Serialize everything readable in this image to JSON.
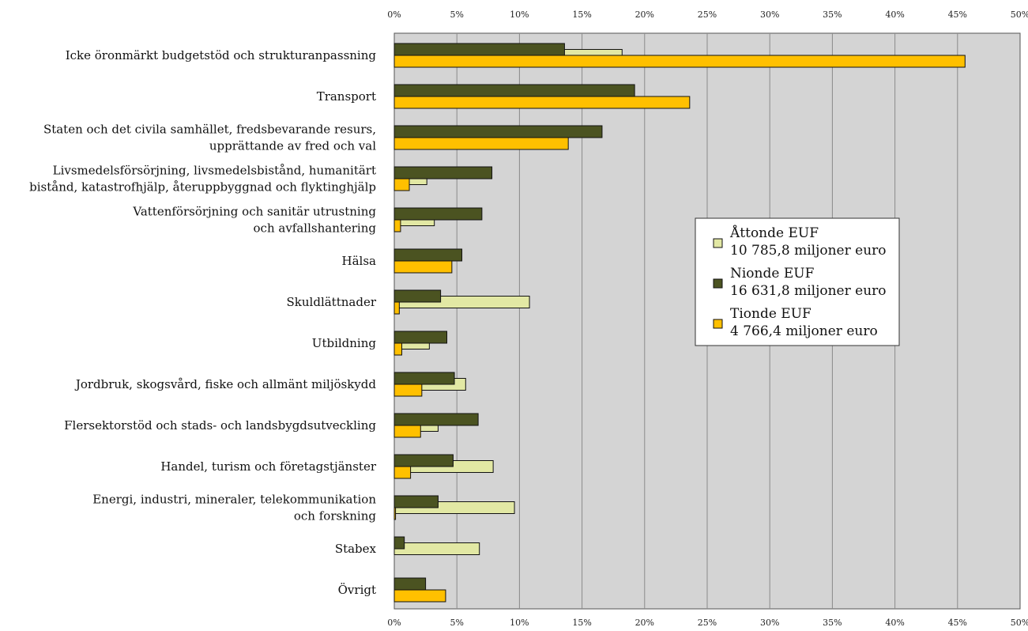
{
  "chart_data": {
    "type": "bar",
    "orientation": "horizontal",
    "xlim": [
      0,
      50
    ],
    "ticks": [
      "0%",
      "5%",
      "10%",
      "15%",
      "20%",
      "25%",
      "30%",
      "35%",
      "40%",
      "45%",
      "50%"
    ],
    "tick_values": [
      0,
      5,
      10,
      15,
      20,
      25,
      30,
      35,
      40,
      45,
      50
    ],
    "grid": true,
    "legend_position": "right-center",
    "categories": [
      [
        "Icke öronmärkt budgetstöd och strukturanpassning"
      ],
      [
        "Transport"
      ],
      [
        "Staten och det civila samhället, fredsbevarande resurs,",
        "upprättande av fred och val"
      ],
      [
        "Livsmedelsförsörjning, livsmedelsbistånd, humanitärt",
        "bistånd, katastrofhjälp, återuppbyggnad och flyktinghjälp"
      ],
      [
        "Vattenförsörjning och sanitär utrustning",
        "och avfallshantering"
      ],
      [
        "Hälsa"
      ],
      [
        "Skuldlättnader"
      ],
      [
        "Utbildning"
      ],
      [
        "Jordbruk, skogsvård, fiske och allmänt miljöskydd"
      ],
      [
        "Flersektorstöd och stads- och landsbygdsutveckling"
      ],
      [
        "Handel, turism och företagstjänster"
      ],
      [
        "Energi, industri, mineraler, telekommunikation",
        "och forskning"
      ],
      [
        "Stabex"
      ],
      [
        "Övrigt"
      ]
    ],
    "series": [
      {
        "name_lines": [
          "Åttonde EUF",
          "10 785,8 miljoner euro"
        ],
        "color": "#e2e8a4",
        "values": [
          18.2,
          0,
          0,
          2.6,
          3.2,
          0,
          10.8,
          2.8,
          5.7,
          3.5,
          7.9,
          9.6,
          6.8,
          0
        ]
      },
      {
        "name_lines": [
          "Nionde EUF",
          "16 631,8 miljoner euro"
        ],
        "color": "#4b5321",
        "values": [
          13.6,
          19.2,
          16.6,
          7.8,
          7.0,
          5.4,
          3.7,
          4.2,
          4.8,
          6.7,
          4.7,
          3.5,
          0.8,
          2.5
        ]
      },
      {
        "name_lines": [
          "Tionde EUF",
          "4 766,4 miljoner euro"
        ],
        "color": "#ffc000",
        "values": [
          45.6,
          23.6,
          13.9,
          1.2,
          0.5,
          4.6,
          0.4,
          0.6,
          2.2,
          2.1,
          1.3,
          0.1,
          0,
          4.1
        ]
      }
    ]
  }
}
